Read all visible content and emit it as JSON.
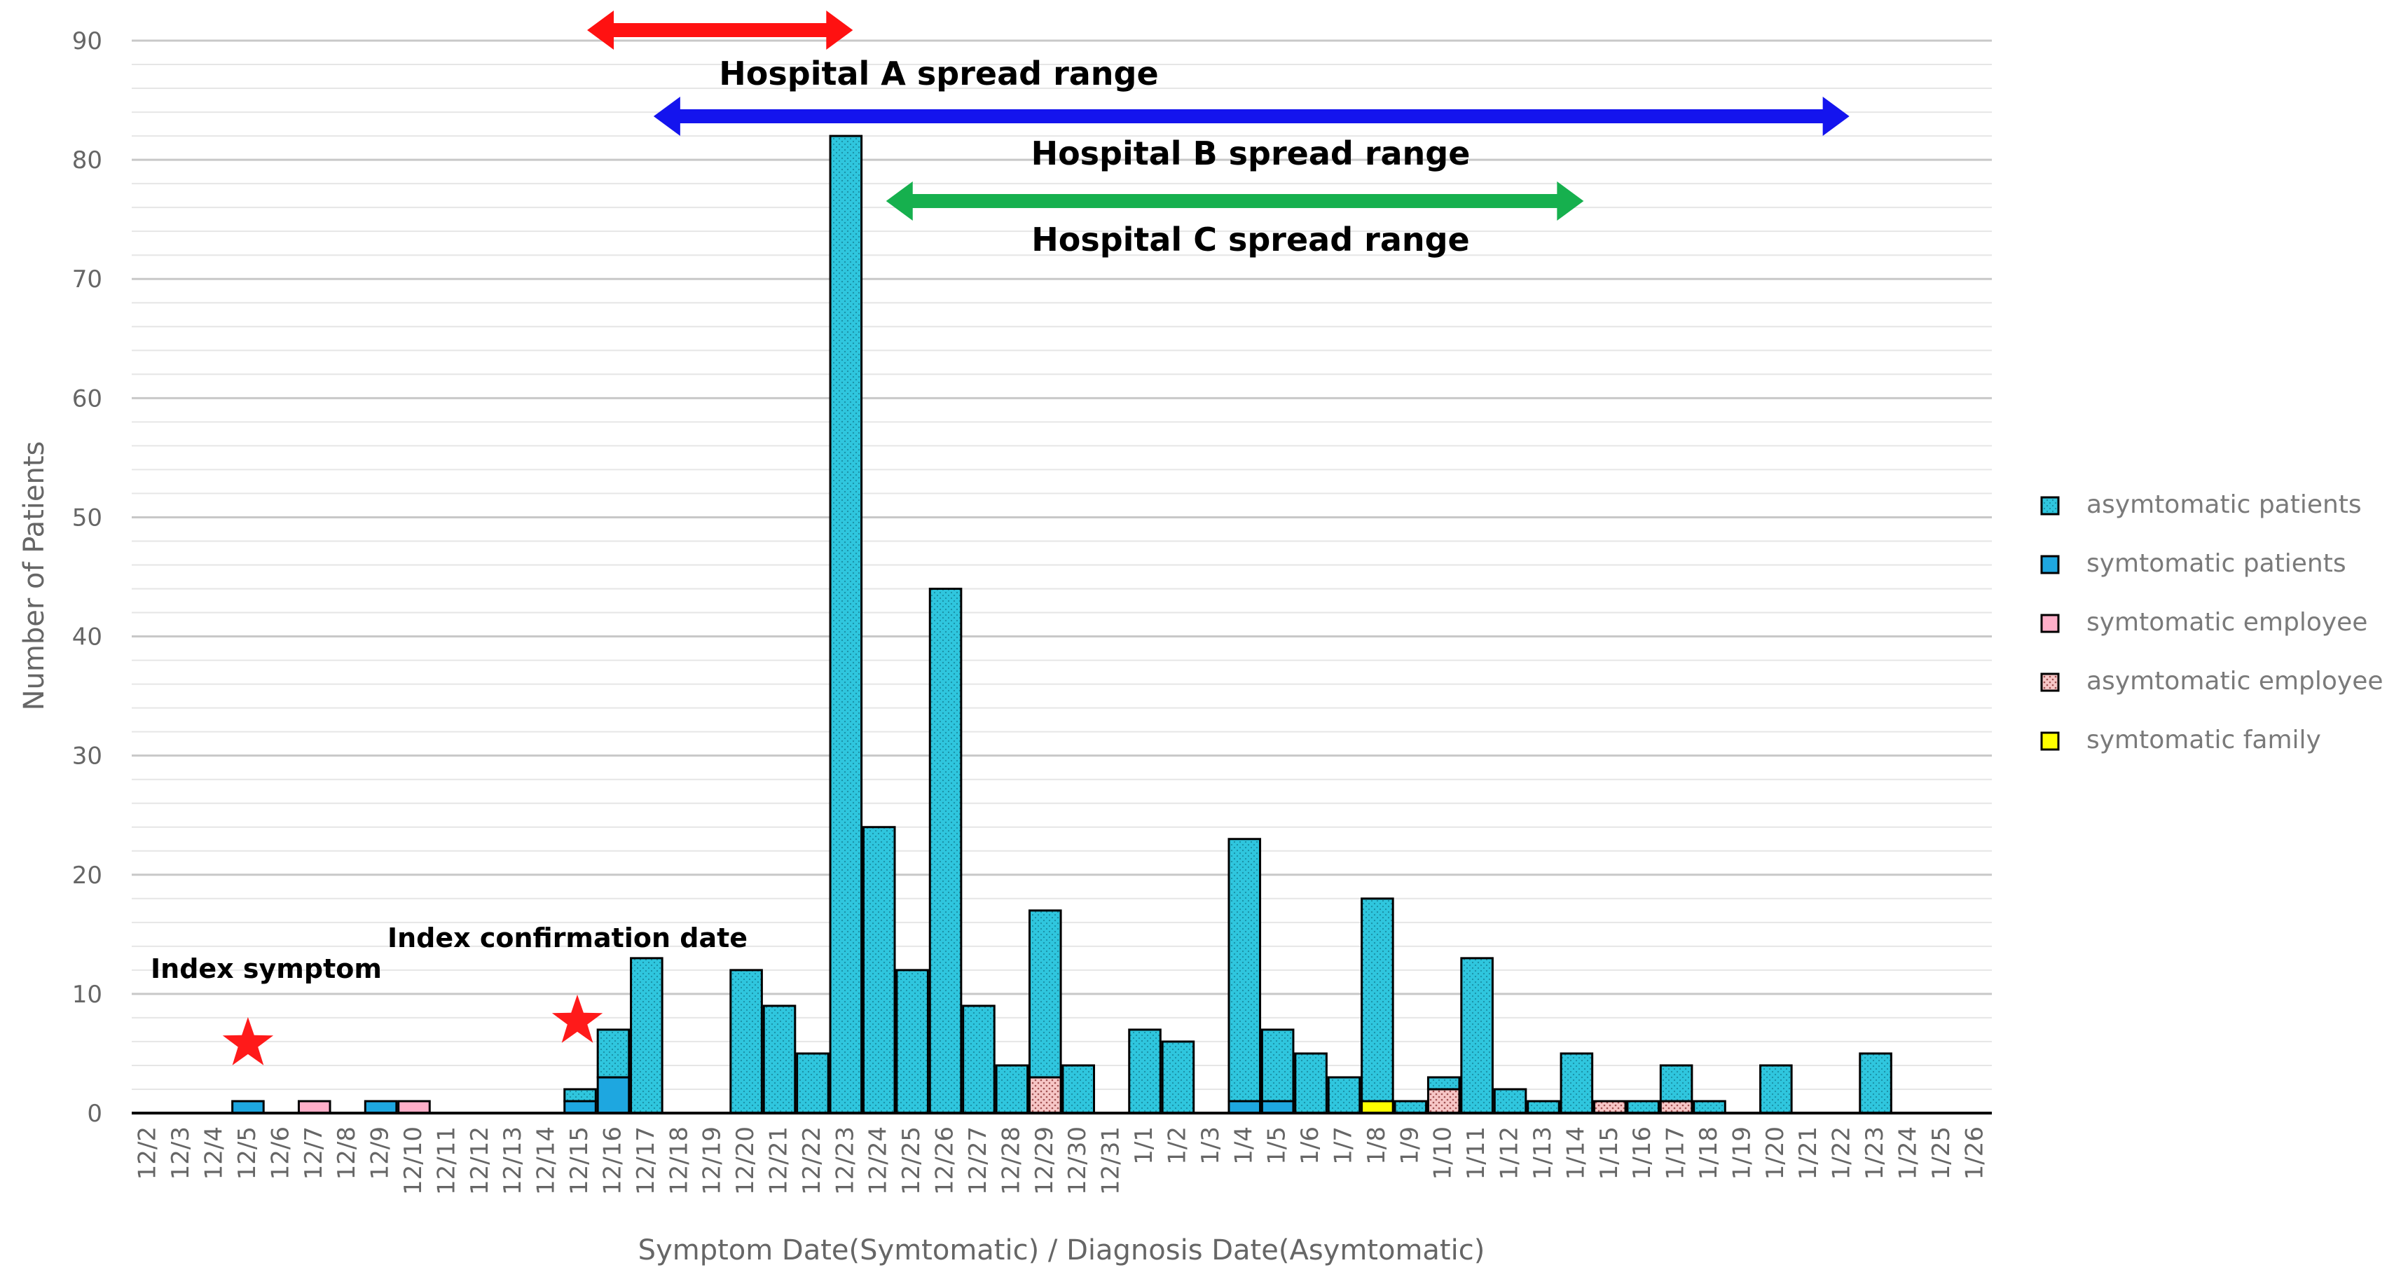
{
  "chart_data": {
    "type": "bar",
    "stacked": true,
    "xlabel": "Symptom Date(Symtomatic) / Diagnosis Date(Asymtomatic)",
    "ylabel": "Number of Patients",
    "ylim": [
      0,
      90
    ],
    "yticks": [
      0,
      10,
      20,
      30,
      40,
      50,
      60,
      70,
      80,
      90
    ],
    "minor_grid_step": 2,
    "categories": [
      "12/2",
      "12/3",
      "12/4",
      "12/5",
      "12/6",
      "12/7",
      "12/8",
      "12/9",
      "12/10",
      "12/11",
      "12/12",
      "12/13",
      "12/14",
      "12/15",
      "12/16",
      "12/17",
      "12/18",
      "12/19",
      "12/20",
      "12/21",
      "12/22",
      "12/23",
      "12/24",
      "12/25",
      "12/26",
      "12/27",
      "12/28",
      "12/29",
      "12/30",
      "12/31",
      "1/1",
      "1/2",
      "1/3",
      "1/4",
      "1/5",
      "1/6",
      "1/7",
      "1/8",
      "1/9",
      "1/10",
      "1/11",
      "1/12",
      "1/13",
      "1/14",
      "1/15",
      "1/16",
      "1/17",
      "1/18",
      "1/19",
      "1/20",
      "1/21",
      "1/22",
      "1/23",
      "1/24",
      "1/25",
      "1/26"
    ],
    "series": [
      {
        "name": "symtomatic patients",
        "color": "#1ea7e0",
        "values": [
          0,
          0,
          0,
          1,
          0,
          0,
          0,
          1,
          0,
          0,
          0,
          0,
          0,
          1,
          3,
          0,
          0,
          0,
          0,
          0,
          0,
          0,
          0,
          0,
          0,
          0,
          0,
          0,
          0,
          0,
          0,
          0,
          0,
          1,
          1,
          0,
          0,
          0,
          0,
          0,
          0,
          0,
          0,
          0,
          0,
          0,
          0,
          0,
          0,
          0,
          0,
          0,
          0,
          0,
          0,
          0
        ]
      },
      {
        "name": "symtomatic family",
        "color": "#ffff00",
        "values": [
          0,
          0,
          0,
          0,
          0,
          0,
          0,
          0,
          0,
          0,
          0,
          0,
          0,
          0,
          0,
          0,
          0,
          0,
          0,
          0,
          0,
          0,
          0,
          0,
          0,
          0,
          0,
          0,
          0,
          0,
          0,
          0,
          0,
          0,
          0,
          0,
          0,
          1,
          0,
          0,
          0,
          0,
          0,
          0,
          0,
          0,
          0,
          0,
          0,
          0,
          0,
          0,
          0,
          0,
          0,
          0
        ]
      },
      {
        "name": "symtomatic employee",
        "color": "#ffafc9",
        "values": [
          0,
          0,
          0,
          0,
          0,
          1,
          0,
          0,
          1,
          0,
          0,
          0,
          0,
          0,
          0,
          0,
          0,
          0,
          0,
          0,
          0,
          0,
          0,
          0,
          0,
          0,
          0,
          0,
          0,
          0,
          0,
          0,
          0,
          0,
          0,
          0,
          0,
          0,
          0,
          0,
          0,
          0,
          0,
          0,
          0,
          0,
          0,
          0,
          0,
          0,
          0,
          0,
          0,
          0,
          0,
          0
        ]
      },
      {
        "name": "asymtomatic employee",
        "color": "#f4b8b8",
        "values": [
          0,
          0,
          0,
          0,
          0,
          0,
          0,
          0,
          0,
          0,
          0,
          0,
          0,
          0,
          0,
          0,
          0,
          0,
          0,
          0,
          0,
          0,
          0,
          0,
          0,
          0,
          0,
          3,
          0,
          0,
          0,
          0,
          0,
          0,
          0,
          0,
          0,
          0,
          0,
          2,
          0,
          0,
          0,
          0,
          1,
          0,
          1,
          0,
          0,
          0,
          0,
          0,
          0,
          0,
          0,
          0
        ]
      },
      {
        "name": "asymtomatic patients",
        "color": "#2fc6de",
        "values": [
          0,
          0,
          0,
          0,
          0,
          0,
          0,
          0,
          0,
          0,
          0,
          0,
          0,
          1,
          4,
          13,
          0,
          0,
          12,
          9,
          5,
          82,
          24,
          12,
          44,
          9,
          4,
          14,
          4,
          0,
          7,
          6,
          0,
          22,
          6,
          5,
          3,
          17,
          1,
          1,
          13,
          2,
          1,
          5,
          0,
          1,
          3,
          1,
          0,
          4,
          0,
          0,
          5,
          0,
          0,
          0
        ]
      }
    ],
    "legend": [
      "asymtomatic patients",
      "symtomatic patients",
      "symtomatic employee",
      "asymtomatic employee",
      "symtomatic family"
    ],
    "legend_position": "right",
    "ranges": [
      {
        "label": "Hospital A spread range",
        "color": "#ff1111",
        "from": "12/15",
        "to": "12/23"
      },
      {
        "label": "Hospital B spread range",
        "color": "#1414ee",
        "from": "12/17",
        "to": "1/22"
      },
      {
        "label": "Hospital C spread range",
        "color": "#16b04e",
        "from": "12/24",
        "to": "1/14"
      }
    ],
    "annotations": [
      {
        "label": "Index symptom",
        "date": "12/5",
        "marker": "star",
        "marker_color": "#ff1a1a",
        "marker_y": 7
      },
      {
        "label": "Index confirmation date",
        "date": "12/15",
        "marker": "star",
        "marker_color": "#ff1a1a",
        "marker_y": 8
      }
    ]
  }
}
